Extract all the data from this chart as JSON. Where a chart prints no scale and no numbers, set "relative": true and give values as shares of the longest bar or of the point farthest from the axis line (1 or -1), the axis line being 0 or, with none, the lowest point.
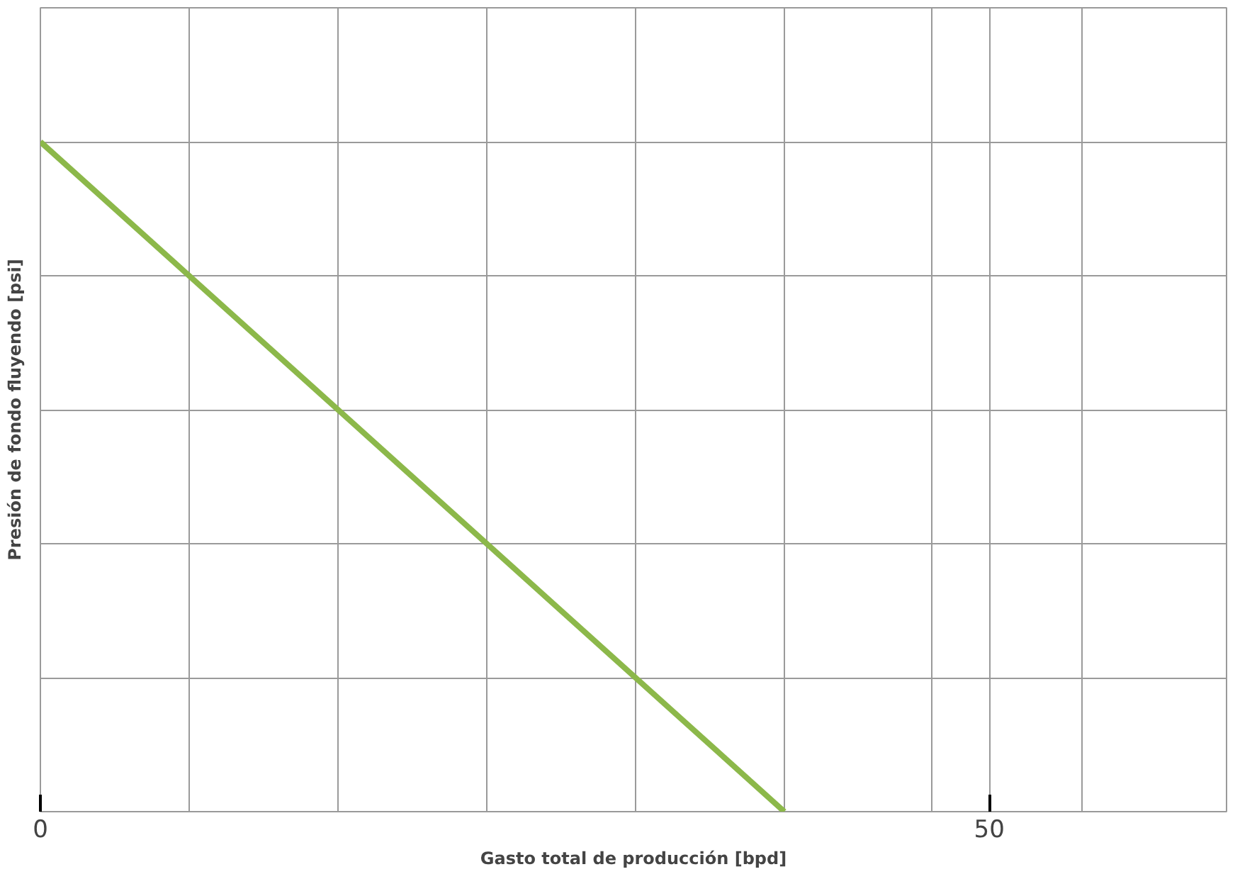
{
  "chart_data": {
    "type": "line",
    "xlabel": "Gasto total de producción [bpd]",
    "ylabel": "Presión de fondo fluyendo [psi]",
    "relative": true,
    "x": [
      0,
      39.2
    ],
    "series": [
      {
        "color": "#8cb84a",
        "values": [
          1,
          0
        ]
      }
    ],
    "xlim": [
      0,
      62.5
    ],
    "xticks": [
      0,
      {
        "value": 7.84,
        "label": null
      },
      {
        "value": 15.67,
        "label": null
      },
      {
        "value": 23.5,
        "label": null
      },
      {
        "value": 31.34,
        "label": null
      },
      {
        "value": 39.2,
        "label": null
      },
      {
        "value": 47.0,
        "label": null
      },
      50,
      {
        "value": 54.85,
        "label": null
      }
    ],
    "grid": true,
    "marker": "none",
    "line_style": "solid"
  }
}
